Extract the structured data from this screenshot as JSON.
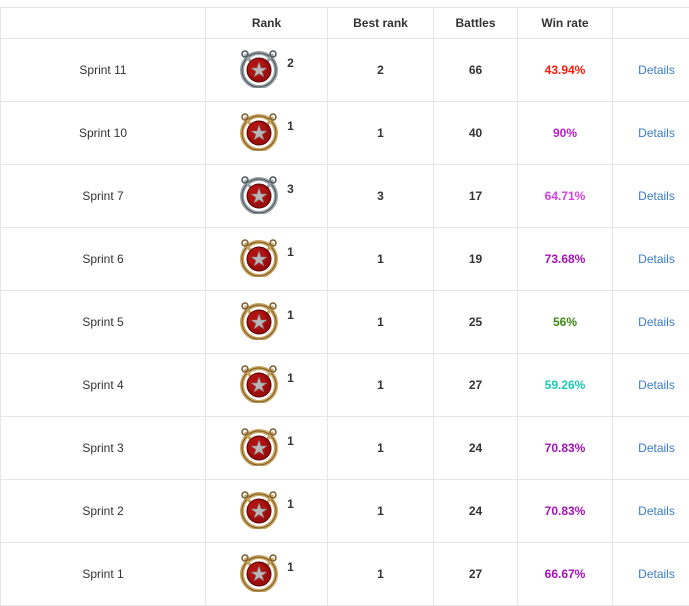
{
  "headers": [
    "",
    "Rank",
    "Best rank",
    "Battles",
    "Win rate",
    ""
  ],
  "rows": [
    {
      "season": "Sprint 11",
      "rank": "2",
      "medal": "silver",
      "best": "2",
      "battles": "66",
      "winrate": "43.94%",
      "color": "#fe1a0a",
      "link": "Details"
    },
    {
      "season": "Sprint 10",
      "rank": "1",
      "medal": "gold",
      "best": "1",
      "battles": "40",
      "winrate": "90%",
      "color": "#b81fc9",
      "link": "Details"
    },
    {
      "season": "Sprint 7",
      "rank": "3",
      "medal": "silver",
      "best": "3",
      "battles": "17",
      "winrate": "64.71%",
      "color": "#d540e6",
      "link": "Details"
    },
    {
      "season": "Sprint 6",
      "rank": "1",
      "medal": "gold",
      "best": "1",
      "battles": "19",
      "winrate": "73.68%",
      "color": "#a512b8",
      "link": "Details"
    },
    {
      "season": "Sprint 5",
      "rank": "1",
      "medal": "gold",
      "best": "1",
      "battles": "25",
      "winrate": "56%",
      "color": "#3c8a14",
      "link": "Details"
    },
    {
      "season": "Sprint 4",
      "rank": "1",
      "medal": "gold",
      "best": "1",
      "battles": "27",
      "winrate": "59.26%",
      "color": "#1ac9b0",
      "link": "Details"
    },
    {
      "season": "Sprint 3",
      "rank": "1",
      "medal": "gold",
      "best": "1",
      "battles": "24",
      "winrate": "70.83%",
      "color": "#a512b8",
      "link": "Details"
    },
    {
      "season": "Sprint 2",
      "rank": "1",
      "medal": "gold",
      "best": "1",
      "battles": "24",
      "winrate": "70.83%",
      "color": "#a512b8",
      "link": "Details"
    },
    {
      "season": "Sprint 1",
      "rank": "1",
      "medal": "gold",
      "best": "1",
      "battles": "27",
      "winrate": "66.67%",
      "color": "#a512b8",
      "link": "Details"
    }
  ]
}
